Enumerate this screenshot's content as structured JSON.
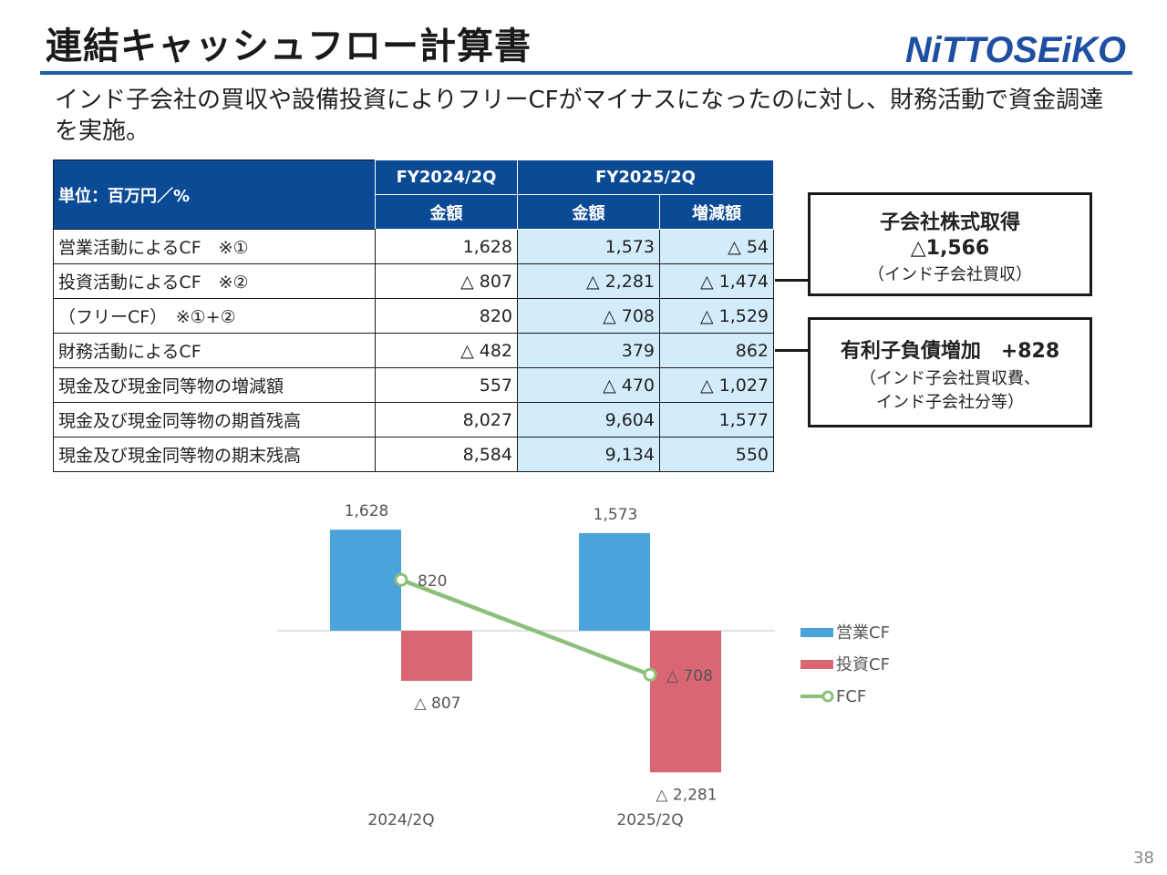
{
  "title": "連結キャッシュフロー計算書",
  "logo_text": "NiTTOSEiKO",
  "lead": "インド子会社の買収や設備投資によりフリーCFがマイナスになったのに対し、財務活動で資金調達を実施。",
  "table": {
    "unit_label": "単位：百万円／%",
    "fy_prev": "FY2024/2Q",
    "fy_curr": "FY2025/2Q",
    "col_amount": "金額",
    "col_change": "増減額",
    "rows": [
      {
        "label": "営業活動によるCF　※①",
        "prev": "1,628",
        "curr": "1,573",
        "diff": "△ 54"
      },
      {
        "label": "投資活動によるCF　※②",
        "prev": "△ 807",
        "curr": "△ 2,281",
        "diff": "△ 1,474"
      },
      {
        "label": "（フリーCF）　※①+②",
        "prev": "820",
        "curr": "△ 708",
        "diff": "△ 1,529"
      },
      {
        "label": "財務活動によるCF",
        "prev": "△ 482",
        "curr": "379",
        "diff": "862"
      },
      {
        "label": "現金及び現金同等物の増減額",
        "prev": "557",
        "curr": "△ 470",
        "diff": "△ 1,027"
      },
      {
        "label": "現金及び現金同等物の期首残高",
        "prev": "8,027",
        "curr": "9,604",
        "diff": "1,577"
      },
      {
        "label": "現金及び現金同等物の期末残高",
        "prev": "8,584",
        "curr": "9,134",
        "diff": "550"
      }
    ]
  },
  "callouts": {
    "acq": {
      "head": "子会社株式取得",
      "value": "△1,566",
      "note": "（インド子会社買収）"
    },
    "debt": {
      "head": "有利子負債増加　+828",
      "note1": "（インド子会社買収費、",
      "note2": "インド子会社分等）"
    }
  },
  "chart_data": {
    "type": "bar",
    "categories": [
      "2024/2Q",
      "2025/2Q"
    ],
    "series": [
      {
        "name": "営業CF",
        "type": "bar",
        "values": [
          1628,
          1573
        ],
        "labels": [
          "1,628",
          "1,573"
        ],
        "color": "#4aa3da"
      },
      {
        "name": "投資CF",
        "type": "bar",
        "values": [
          -807,
          -2281
        ],
        "labels": [
          "△ 807",
          "△ 2,281"
        ],
        "color": "#d96672"
      },
      {
        "name": "FCF",
        "type": "line",
        "values": [
          820,
          -708
        ],
        "labels": [
          "820",
          "△ 708"
        ],
        "color": "#8cc07a"
      }
    ],
    "grid": false,
    "legend": "right"
  },
  "page_number": "38"
}
